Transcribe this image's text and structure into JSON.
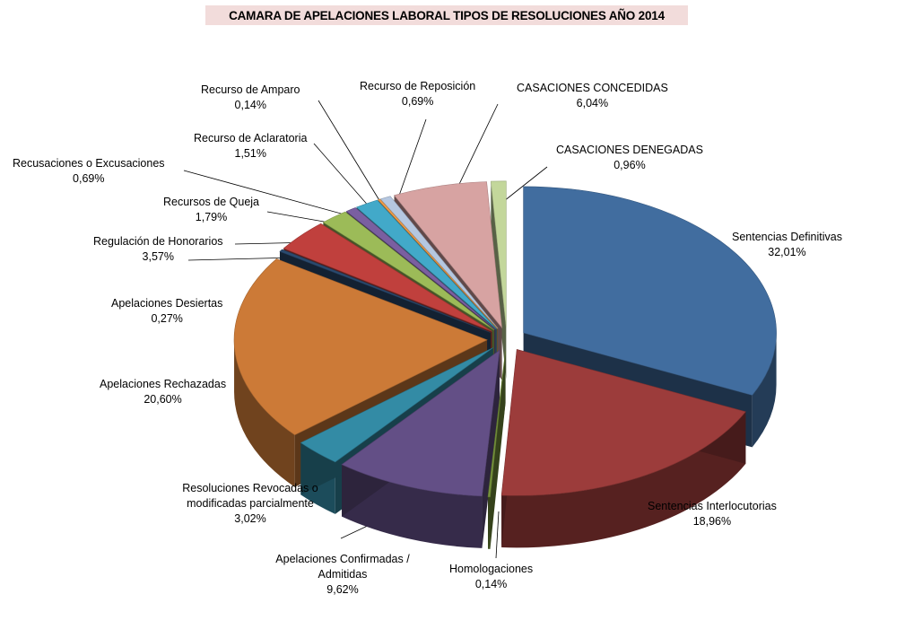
{
  "chart_data": {
    "type": "pie",
    "title": "CAMARA DE APELACIONES LABORAL TIPOS DE RESOLUCIONES AÑO 2014",
    "unit": "%",
    "slices": [
      {
        "label": "Sentencias Definitivas",
        "value": 32.01,
        "value_text": "32,01%",
        "color": "#416d9f"
      },
      {
        "label": "Sentencias Interlocutorias",
        "value": 18.96,
        "value_text": "18,96%",
        "color": "#9c3c3b"
      },
      {
        "label": "Homologaciones",
        "value": 0.14,
        "value_text": "0,14%",
        "color": "#75923c"
      },
      {
        "label": "Apelaciones  Confirmadas / Admitidas",
        "value": 9.62,
        "value_text": "9,62%",
        "color": "#634f86"
      },
      {
        "label": "Resoluciones Revocadas o modificadas parcialmente",
        "value": 3.02,
        "value_text": "3,02%",
        "color": "#338ba5"
      },
      {
        "label": "Apelaciones  Rechazadas",
        "value": 20.6,
        "value_text": "20,60%",
        "color": "#cc7a37"
      },
      {
        "label": "Apelaciones Desiertas",
        "value": 0.27,
        "value_text": "0,27%",
        "color": "#2a4a6f"
      },
      {
        "label": "Regulación de Honorarios",
        "value": 3.57,
        "value_text": "3,57%",
        "color": "#c0403d"
      },
      {
        "label": "Recursos de Queja",
        "value": 1.79,
        "value_text": "1,79%",
        "color": "#9cbb58"
      },
      {
        "label": "Recusaciones o Excusaciones",
        "value": 0.69,
        "value_text": "0,69%",
        "color": "#7a5fa0"
      },
      {
        "label": "Recurso de Aclaratoria",
        "value": 1.51,
        "value_text": "1,51%",
        "color": "#42a9c9"
      },
      {
        "label": "Recurso de Amparo",
        "value": 0.14,
        "value_text": "0,14%",
        "color": "#f5a04a"
      },
      {
        "label": "Recurso de Reposición",
        "value": 0.69,
        "value_text": "0,69%",
        "color": "#b5c7e0"
      },
      {
        "label": "CASACIONES CONCEDIDAS",
        "value": 6.04,
        "value_text": "6,04%",
        "color": "#d7a3a2"
      },
      {
        "label": "CASACIONES DENEGADAS",
        "value": 0.96,
        "value_text": "0,96%",
        "color": "#c3d79b"
      }
    ],
    "legend": "none",
    "style": "3d-exploded"
  }
}
